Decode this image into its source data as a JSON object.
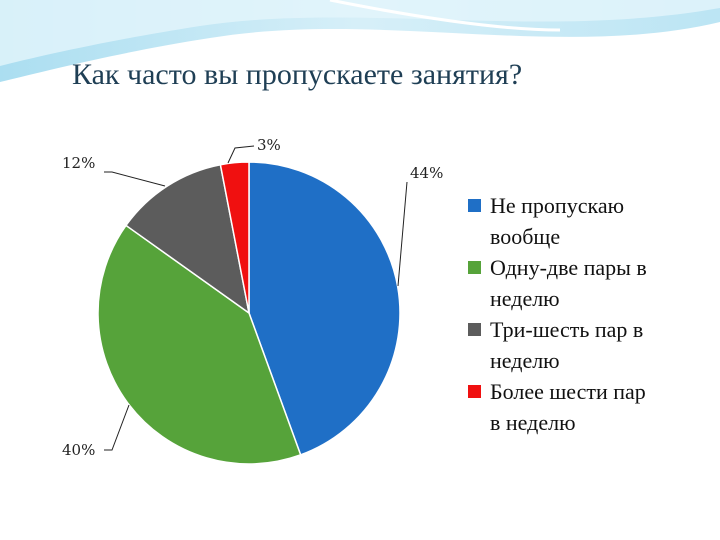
{
  "title": "Как часто вы пропускаете занятия?",
  "chart_data": {
    "type": "pie",
    "categories": [
      "Не пропускаю вообще",
      "Одну-две пары в неделю",
      "Три-шесть пар в неделю",
      "Более шести пар в неделю"
    ],
    "values": [
      44,
      40,
      12,
      3
    ],
    "data_labels": [
      "44%",
      "40%",
      "12%",
      "3%"
    ],
    "colors": [
      "#1f6fc6",
      "#56a33a",
      "#5c5c5c",
      "#f01010"
    ],
    "legend": {
      "placement": "right",
      "lines": [
        [
          "Не пропускаю",
          "вообще"
        ],
        [
          "Одну-две пары в",
          "неделю"
        ],
        [
          "Три-шесть пар в",
          "неделю"
        ],
        [
          "Более шести пар",
          "в неделю"
        ]
      ]
    }
  }
}
